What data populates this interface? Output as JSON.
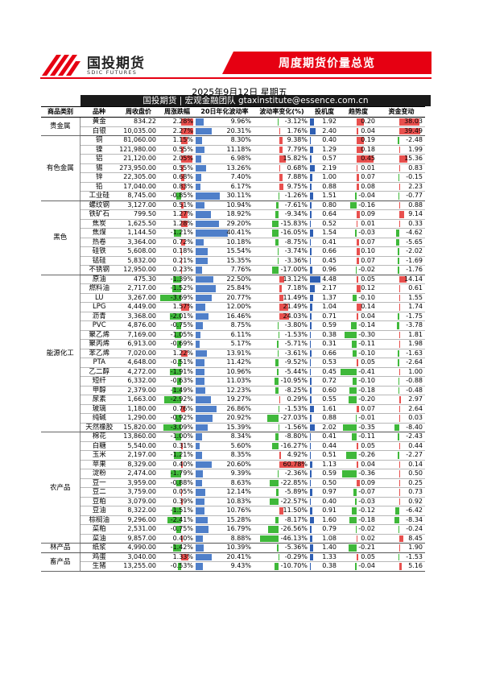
{
  "header": {
    "logo_cn": "国投期货",
    "logo_en": "SDIC FUTURES",
    "title": "周度期货价量总览",
    "date": "2025年9月12日 星期五",
    "subtitle": "国投期货 | 宏观金融团队 gtaxinstitute@essence.com.cn"
  },
  "columns": [
    "商品类别",
    "品种",
    "周收盘价",
    "周涨跌幅",
    "20日年化波动率",
    "波动率变化(%)",
    "投机度",
    "趋势度",
    "资金变动"
  ],
  "colors": {
    "brand_red": "#e60012",
    "pos": "#e8504e",
    "neg": "#3fb83a",
    "vol": "#4f7fc9",
    "spec": "#2f5fb3"
  },
  "groups": [
    {
      "category": "贵金属",
      "rows": [
        {
          "name": "黄金",
          "close": "834.22",
          "chg": "2.28%",
          "vol": "9.96%",
          "vchg": "-3.12%",
          "spec": "1.92",
          "trend": "0.20",
          "flow": "38.03"
        },
        {
          "name": "白银",
          "close": "10,035.00",
          "chg": "2.27%",
          "vol": "20.31%",
          "vchg": "1.76%",
          "spec": "2.40",
          "trend": "0.04",
          "flow": "39.49"
        }
      ]
    },
    {
      "category": "有色金属",
      "rows": [
        {
          "name": "铜",
          "close": "81,060.00",
          "chg": "1.15%",
          "vol": "8.30%",
          "vchg": "9.38%",
          "spec": "0.40",
          "trend": "0.19",
          "flow": "-2.48"
        },
        {
          "name": "镍",
          "close": "121,980.00",
          "chg": "0.55%",
          "vol": "11.18%",
          "vchg": "7.79%",
          "spec": "1.29",
          "trend": "0.18",
          "flow": "1.99"
        },
        {
          "name": "铝",
          "close": "21,120.00",
          "chg": "2.05%",
          "vol": "6.98%",
          "vchg": "15.82%",
          "spec": "0.57",
          "trend": "0.45",
          "flow": "15.36"
        },
        {
          "name": "锡",
          "close": "273,950.00",
          "chg": "0.55%",
          "vol": "13.26%",
          "vchg": "0.68%",
          "spec": "2.19",
          "trend": "0.01",
          "flow": "0.83"
        },
        {
          "name": "锌",
          "close": "22,305.00",
          "chg": "0.68%",
          "vol": "7.40%",
          "vchg": "7.88%",
          "spec": "1.00",
          "trend": "0.07",
          "flow": "-0.15"
        },
        {
          "name": "铅",
          "close": "17,040.00",
          "chg": "0.83%",
          "vol": "6.17%",
          "vchg": "9.75%",
          "spec": "0.88",
          "trend": "0.08",
          "flow": "2.23"
        },
        {
          "name": "工业硅",
          "close": "8,745.00",
          "chg": "-0.85%",
          "vol": "30.11%",
          "vchg": "-1.26%",
          "spec": "1.51",
          "trend": "-0.04",
          "flow": "-0.77"
        }
      ]
    },
    {
      "category": "黑色",
      "rows": [
        {
          "name": "螺纹钢",
          "close": "3,127.00",
          "chg": "0.51%",
          "vol": "10.94%",
          "vchg": "-7.61%",
          "spec": "0.80",
          "trend": "-0.16",
          "flow": "0.88"
        },
        {
          "name": "铁矿石",
          "close": "799.50",
          "chg": "1.27%",
          "vol": "18.92%",
          "vchg": "-9.34%",
          "spec": "0.64",
          "trend": "0.09",
          "flow": "9.14"
        },
        {
          "name": "焦炭",
          "close": "1,625.50",
          "chg": "1.28%",
          "vol": "29.20%",
          "vchg": "-15.83%",
          "spec": "0.52",
          "trend": "0.01",
          "flow": "0.33"
        },
        {
          "name": "焦煤",
          "close": "1,144.50",
          "chg": "-1.21%",
          "vol": "40.41%",
          "vchg": "-16.05%",
          "spec": "1.54",
          "trend": "-0.03",
          "flow": "-4.62"
        },
        {
          "name": "热卷",
          "close": "3,364.00",
          "chg": "0.72%",
          "vol": "10.18%",
          "vchg": "-8.75%",
          "spec": "0.41",
          "trend": "0.07",
          "flow": "-5.65"
        },
        {
          "name": "硅铁",
          "close": "5,608.00",
          "chg": "0.18%",
          "vol": "15.54%",
          "vchg": "-3.74%",
          "spec": "0.66",
          "trend": "0.10",
          "flow": "-2.02"
        },
        {
          "name": "锰硅",
          "close": "5,832.00",
          "chg": "0.21%",
          "vol": "15.35%",
          "vchg": "-3.36%",
          "spec": "0.45",
          "trend": "0.07",
          "flow": "-1.69"
        },
        {
          "name": "不锈钢",
          "close": "12,950.00",
          "chg": "0.23%",
          "vol": "7.76%",
          "vchg": "-17.00%",
          "spec": "0.96",
          "trend": "-0.02",
          "flow": "-1.76"
        }
      ]
    },
    {
      "category": "能源化工",
      "rows": [
        {
          "name": "原油",
          "close": "475.30",
          "chg": "-1.39%",
          "vol": "22.50%",
          "vchg": "13.12%",
          "spec": "4.48",
          "trend": "0.05",
          "flow": "14.14"
        },
        {
          "name": "燃料油",
          "close": "2,717.00",
          "chg": "-1.52%",
          "vol": "25.84%",
          "vchg": "7.18%",
          "spec": "2.17",
          "trend": "0.12",
          "flow": "0.61"
        },
        {
          "name": "LU",
          "close": "3,267.00",
          "chg": "-3.69%",
          "vol": "20.77%",
          "vchg": "11.49%",
          "spec": "1.37",
          "trend": "-0.10",
          "flow": "1.55"
        },
        {
          "name": "LPG",
          "close": "4,449.00",
          "chg": "1.57%",
          "vol": "12.00%",
          "vchg": "21.49%",
          "spec": "1.04",
          "trend": "0.14",
          "flow": "1.74"
        },
        {
          "name": "沥青",
          "close": "3,368.00",
          "chg": "-2.01%",
          "vol": "16.46%",
          "vchg": "24.03%",
          "spec": "0.71",
          "trend": "0.04",
          "flow": "-1.75"
        },
        {
          "name": "PVC",
          "close": "4,876.00",
          "chg": "-0.75%",
          "vol": "8.75%",
          "vchg": "-3.80%",
          "spec": "0.59",
          "trend": "-0.14",
          "flow": "-3.78"
        },
        {
          "name": "聚乙烯",
          "close": "7,169.00",
          "chg": "-1.05%",
          "vol": "6.11%",
          "vchg": "-1.53%",
          "spec": "0.38",
          "trend": "-0.30",
          "flow": "1.81"
        },
        {
          "name": "聚丙烯",
          "close": "6,913.00",
          "chg": "-0.69%",
          "vol": "5.17%",
          "vchg": "-5.71%",
          "spec": "0.31",
          "trend": "-0.11",
          "flow": "1.98"
        },
        {
          "name": "苯乙烯",
          "close": "7,020.00",
          "chg": "1.22%",
          "vol": "13.91%",
          "vchg": "-3.61%",
          "spec": "0.66",
          "trend": "-0.10",
          "flow": "-1.63"
        },
        {
          "name": "PTA",
          "close": "4,648.00",
          "chg": "-0.51%",
          "vol": "11.42%",
          "vchg": "-9.52%",
          "spec": "0.53",
          "trend": "0.05",
          "flow": "-2.64"
        },
        {
          "name": "乙二醇",
          "close": "4,272.00",
          "chg": "-1.91%",
          "vol": "10.96%",
          "vchg": "-5.44%",
          "spec": "0.45",
          "trend": "-0.41",
          "flow": "1.00"
        },
        {
          "name": "短纤",
          "close": "6,332.00",
          "chg": "-0.63%",
          "vol": "11.03%",
          "vchg": "-10.95%",
          "spec": "0.72",
          "trend": "-0.10",
          "flow": "-0.88"
        },
        {
          "name": "甲醇",
          "close": "2,379.00",
          "chg": "-1.49%",
          "vol": "12.23%",
          "vchg": "-8.25%",
          "spec": "0.60",
          "trend": "-0.18",
          "flow": "-0.48"
        },
        {
          "name": "尿素",
          "close": "1,663.00",
          "chg": "-2.92%",
          "vol": "19.27%",
          "vchg": "0.29%",
          "spec": "0.55",
          "trend": "-0.20",
          "flow": "2.97"
        },
        {
          "name": "玻璃",
          "close": "1,180.00",
          "chg": "0.76%",
          "vol": "26.86%",
          "vchg": "-1.53%",
          "spec": "1.61",
          "trend": "0.07",
          "flow": "2.64"
        },
        {
          "name": "纯碱",
          "close": "1,290.00",
          "chg": "-0.92%",
          "vol": "20.92%",
          "vchg": "-27.03%",
          "spec": "0.88",
          "trend": "-0.01",
          "flow": "0.03"
        },
        {
          "name": "天然橡胶",
          "close": "15,820.00",
          "chg": "-3.09%",
          "vol": "15.39%",
          "vchg": "-1.56%",
          "spec": "2.02",
          "trend": "-0.35",
          "flow": "-8.40"
        }
      ]
    },
    {
      "category": "农产品",
      "rows": [
        {
          "name": "棉花",
          "close": "13,860.00",
          "chg": "-1.00%",
          "vol": "8.34%",
          "vchg": "-8.80%",
          "spec": "0.41",
          "trend": "-0.11",
          "flow": "-2.43"
        },
        {
          "name": "白糖",
          "close": "5,540.00",
          "chg": "0.31%",
          "vol": "5.60%",
          "vchg": "-16.27%",
          "spec": "0.44",
          "trend": "0.05",
          "flow": "0.44"
        },
        {
          "name": "玉米",
          "close": "2,197.00",
          "chg": "-1.21%",
          "vol": "8.35%",
          "vchg": "4.92%",
          "spec": "0.51",
          "trend": "-0.26",
          "flow": "-2.27"
        },
        {
          "name": "苹果",
          "close": "8,329.00",
          "chg": "0.40%",
          "vol": "20.60%",
          "vchg": "60.78%",
          "spec": "1.13",
          "trend": "0.04",
          "flow": "0.14"
        },
        {
          "name": "淀粉",
          "close": "2,474.00",
          "chg": "-1.79%",
          "vol": "9.39%",
          "vchg": "-2.36%",
          "spec": "0.59",
          "trend": "-0.36",
          "flow": "0.50"
        },
        {
          "name": "豆一",
          "close": "3,959.00",
          "chg": "-0.88%",
          "vol": "8.63%",
          "vchg": "-22.85%",
          "spec": "0.50",
          "trend": "0.09",
          "flow": "0.25"
        },
        {
          "name": "豆二",
          "close": "3,759.00",
          "chg": "0.05%",
          "vol": "12.14%",
          "vchg": "-5.89%",
          "spec": "0.97",
          "trend": "-0.07",
          "flow": "0.73"
        },
        {
          "name": "豆粕",
          "close": "3,079.00",
          "chg": "0.39%",
          "vol": "10.83%",
          "vchg": "-22.57%",
          "spec": "0.40",
          "trend": "-0.03",
          "flow": "0.92"
        },
        {
          "name": "豆油",
          "close": "8,322.00",
          "chg": "-1.51%",
          "vol": "10.76%",
          "vchg": "11.50%",
          "spec": "0.91",
          "trend": "-0.12",
          "flow": "-6.42"
        },
        {
          "name": "棕榈油",
          "close": "9,296.00",
          "chg": "-2.41%",
          "vol": "15.28%",
          "vchg": "-8.17%",
          "spec": "1.60",
          "trend": "-0.18",
          "flow": "-8.34"
        },
        {
          "name": "菜粕",
          "close": "2,531.00",
          "chg": "-0.75%",
          "vol": "16.79%",
          "vchg": "-26.56%",
          "spec": "0.79",
          "trend": "-0.02",
          "flow": "-0.24"
        },
        {
          "name": "菜油",
          "close": "9,857.00",
          "chg": "0.40%",
          "vol": "8.88%",
          "vchg": "-46.13%",
          "spec": "1.08",
          "trend": "0.02",
          "flow": "8.45"
        }
      ]
    },
    {
      "category": "林产品",
      "rows": [
        {
          "name": "纸浆",
          "close": "4,990.00",
          "chg": "-1.42%",
          "vol": "10.39%",
          "vchg": "-5.36%",
          "spec": "1.40",
          "trend": "-0.21",
          "flow": "1.90"
        }
      ]
    },
    {
      "category": "畜产品",
      "rows": [
        {
          "name": "鸡蛋",
          "close": "3,040.00",
          "chg": "1.33%",
          "vol": "20.41%",
          "vchg": "-0.29%",
          "spec": "1.33",
          "trend": "0.05",
          "flow": "-1.53"
        },
        {
          "name": "生猪",
          "close": "13,255.00",
          "chg": "-0.53%",
          "vol": "9.43%",
          "vchg": "-10.70%",
          "spec": "0.38",
          "trend": "-0.04",
          "flow": "5.16"
        }
      ]
    }
  ]
}
